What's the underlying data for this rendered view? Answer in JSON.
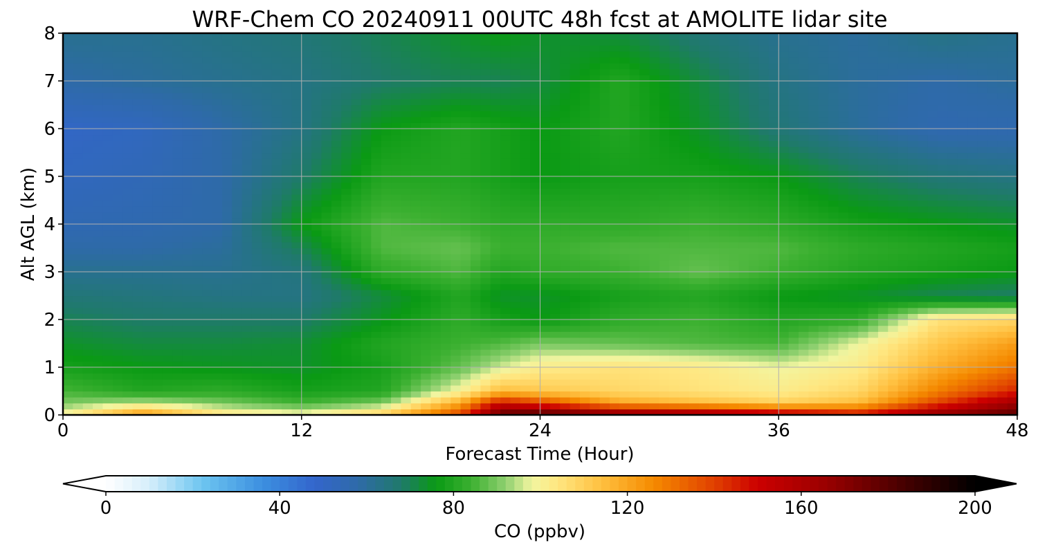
{
  "chart_data": {
    "type": "heatmap",
    "title": "WRF-Chem CO  20240911 00UTC 48h fcst at AMOLITE lidar site",
    "xlabel": "Forecast Time (Hour)",
    "ylabel": "Alt AGL (km)",
    "xlim": [
      0,
      48
    ],
    "ylim": [
      0,
      8
    ],
    "x_ticks": [
      0,
      12,
      24,
      36,
      48
    ],
    "y_ticks": [
      0,
      1,
      2,
      3,
      4,
      5,
      6,
      7,
      8
    ],
    "grid": true,
    "x": [
      0,
      4,
      8,
      12,
      16,
      20,
      22,
      24,
      28,
      32,
      36,
      40,
      44,
      48
    ],
    "y": [
      0,
      0.25,
      0.5,
      1,
      1.5,
      2,
      2.5,
      3,
      3.5,
      4,
      5,
      6,
      7,
      8
    ],
    "z": [
      [
        100,
        125,
        105,
        100,
        110,
        140,
        180,
        185,
        175,
        170,
        160,
        150,
        170,
        180
      ],
      [
        90,
        95,
        90,
        85,
        90,
        120,
        150,
        140,
        120,
        115,
        110,
        115,
        140,
        165
      ],
      [
        85,
        80,
        82,
        78,
        80,
        100,
        115,
        112,
        108,
        105,
        102,
        108,
        128,
        145
      ],
      [
        78,
        76,
        75,
        74,
        78,
        88,
        96,
        102,
        105,
        103,
        98,
        102,
        118,
        130
      ],
      [
        74,
        72,
        72,
        73,
        80,
        84,
        86,
        90,
        88,
        86,
        85,
        98,
        112,
        122
      ],
      [
        70,
        68,
        68,
        68,
        75,
        82,
        78,
        76,
        82,
        84,
        80,
        82,
        105,
        108
      ],
      [
        66,
        65,
        64,
        64,
        72,
        80,
        74,
        74,
        78,
        80,
        76,
        74,
        70,
        68
      ],
      [
        62,
        62,
        62,
        65,
        82,
        86,
        80,
        82,
        84,
        88,
        84,
        80,
        78,
        76
      ],
      [
        58,
        58,
        60,
        70,
        86,
        88,
        84,
        84,
        86,
        86,
        86,
        82,
        80,
        78
      ],
      [
        55,
        56,
        58,
        76,
        86,
        84,
        82,
        82,
        82,
        84,
        82,
        78,
        76,
        74
      ],
      [
        52,
        54,
        58,
        68,
        80,
        80,
        78,
        76,
        78,
        78,
        76,
        70,
        66,
        64
      ],
      [
        50,
        52,
        58,
        64,
        76,
        80,
        78,
        76,
        80,
        74,
        66,
        60,
        56,
        56
      ],
      [
        58,
        60,
        62,
        64,
        68,
        70,
        70,
        72,
        80,
        72,
        64,
        60,
        58,
        60
      ],
      [
        62,
        62,
        64,
        66,
        70,
        74,
        76,
        74,
        72,
        66,
        62,
        60,
        64,
        62
      ]
    ],
    "colorbar": {
      "label": "CO  (ppbv)",
      "min": 0,
      "max": 200,
      "ticks": [
        0,
        40,
        80,
        120,
        160,
        200
      ],
      "extend": "both",
      "colormap": [
        {
          "v": 0,
          "c": "#ffffff"
        },
        {
          "v": 10,
          "c": "#d6eefb"
        },
        {
          "v": 22,
          "c": "#6ec6f0"
        },
        {
          "v": 36,
          "c": "#3c8fe0"
        },
        {
          "v": 48,
          "c": "#3366cc"
        },
        {
          "v": 58,
          "c": "#2e6aa8"
        },
        {
          "v": 68,
          "c": "#1f7a6a"
        },
        {
          "v": 76,
          "c": "#0a9a14"
        },
        {
          "v": 84,
          "c": "#3bb030"
        },
        {
          "v": 92,
          "c": "#8fd070"
        },
        {
          "v": 98,
          "c": "#f2f5a0"
        },
        {
          "v": 104,
          "c": "#ffe680"
        },
        {
          "v": 114,
          "c": "#ffc040"
        },
        {
          "v": 126,
          "c": "#f58a00"
        },
        {
          "v": 140,
          "c": "#e04000"
        },
        {
          "v": 150,
          "c": "#cc0000"
        },
        {
          "v": 166,
          "c": "#990000"
        },
        {
          "v": 185,
          "c": "#400000"
        },
        {
          "v": 200,
          "c": "#000000"
        }
      ]
    }
  }
}
